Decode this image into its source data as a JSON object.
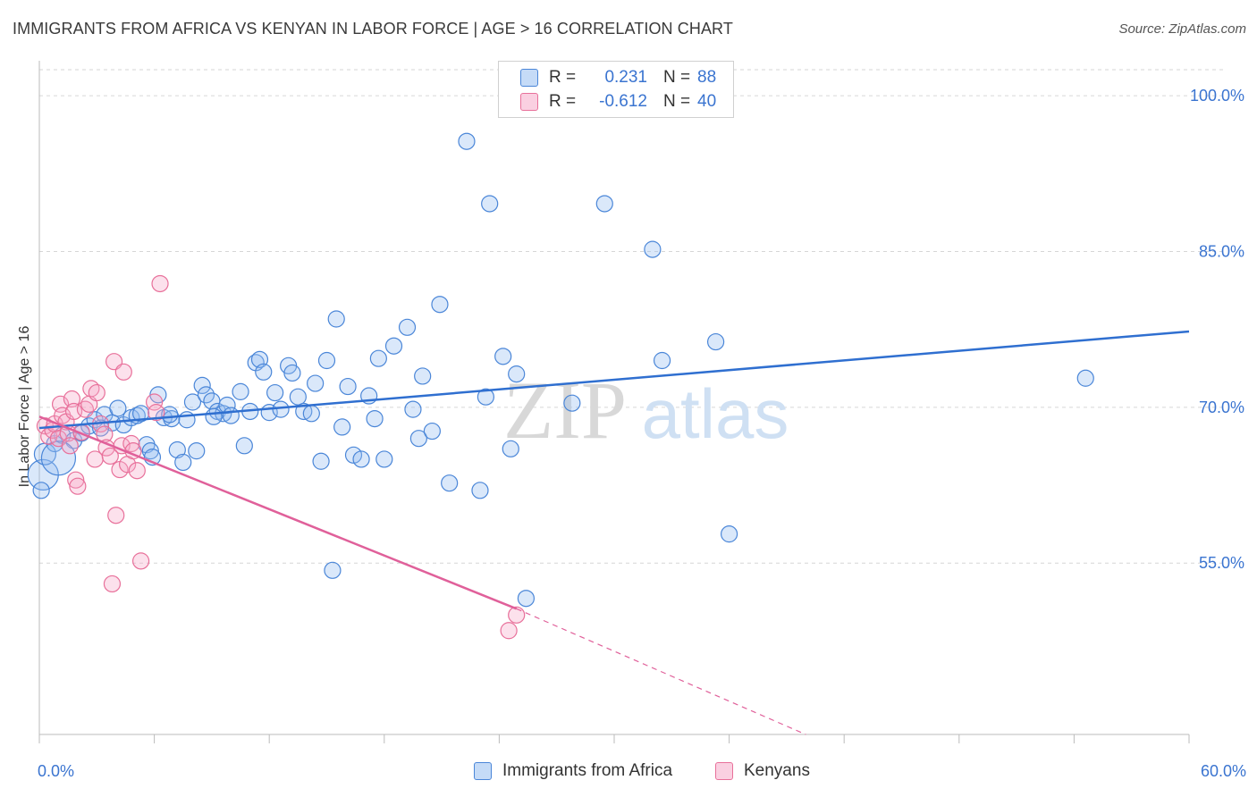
{
  "title": "IMMIGRANTS FROM AFRICA VS KENYAN IN LABOR FORCE | AGE > 16 CORRELATION CHART",
  "source": "Source: ZipAtlas.com",
  "watermark": {
    "zip": "ZIP",
    "atlas": "atlas"
  },
  "colors": {
    "blue": "#4a86d8",
    "blue_fill": "rgba(150,190,240,0.35)",
    "pink": "#e8709a",
    "pink_fill": "rgba(245,170,200,0.35)",
    "grid": "#d6d6d6",
    "tick_text": "#3a74d0"
  },
  "legend": {
    "rows": [
      {
        "r_label": "R =",
        "r_value": "0.231",
        "n_label": "N =",
        "n_value": "88"
      },
      {
        "r_label": "R =",
        "r_value": "-0.612",
        "n_label": "N =",
        "n_value": "40"
      }
    ],
    "bottom": [
      "Immigrants from Africa",
      "Kenyans"
    ]
  },
  "chart_data": {
    "type": "scatter",
    "title": "IMMIGRANTS FROM AFRICA VS KENYAN IN LABOR FORCE | AGE > 16 CORRELATION CHART",
    "xlabel": "",
    "ylabel": "In Labor Force | Age > 16",
    "xlim": [
      0,
      60
    ],
    "ylim": [
      38.5,
      102.5
    ],
    "x_tick_labels": [
      "0.0%",
      "60.0%"
    ],
    "y_ticks": [
      55,
      70,
      85,
      100
    ],
    "y_tick_labels": [
      "55.0%",
      "70.0%",
      "85.0%",
      "100.0%"
    ],
    "grid": true,
    "legend_position": "top-center",
    "series": [
      {
        "name": "Immigrants from Africa",
        "color": "blue",
        "points": [
          [
            0.2,
            63.5
          ],
          [
            0.3,
            65.5
          ],
          [
            0.8,
            66.5
          ],
          [
            1.2,
            67.3
          ],
          [
            1.8,
            66.8
          ],
          [
            2.2,
            67.5
          ],
          [
            2.6,
            68.2
          ],
          [
            2.9,
            68.8
          ],
          [
            3.4,
            69.3
          ],
          [
            3.8,
            68.5
          ],
          [
            4.1,
            69.9
          ],
          [
            4.4,
            68.3
          ],
          [
            4.8,
            69.0
          ],
          [
            5.1,
            69.2
          ],
          [
            5.3,
            69.4
          ],
          [
            5.6,
            66.4
          ],
          [
            5.8,
            65.8
          ],
          [
            5.9,
            65.2
          ],
          [
            6.2,
            71.2
          ],
          [
            6.5,
            69.0
          ],
          [
            6.9,
            68.9
          ],
          [
            7.2,
            65.9
          ],
          [
            7.5,
            64.7
          ],
          [
            7.7,
            68.8
          ],
          [
            8.0,
            70.5
          ],
          [
            8.2,
            65.8
          ],
          [
            8.5,
            72.1
          ],
          [
            8.7,
            71.2
          ],
          [
            9.0,
            70.6
          ],
          [
            9.3,
            69.6
          ],
          [
            9.6,
            69.4
          ],
          [
            9.8,
            70.2
          ],
          [
            10.0,
            69.2
          ],
          [
            10.5,
            71.5
          ],
          [
            10.7,
            66.3
          ],
          [
            11.0,
            69.6
          ],
          [
            11.3,
            74.3
          ],
          [
            11.5,
            74.6
          ],
          [
            11.7,
            73.4
          ],
          [
            12.0,
            69.5
          ],
          [
            12.3,
            71.4
          ],
          [
            12.6,
            69.8
          ],
          [
            13.0,
            74.0
          ],
          [
            13.2,
            73.3
          ],
          [
            13.5,
            71.0
          ],
          [
            13.8,
            69.6
          ],
          [
            14.2,
            69.4
          ],
          [
            14.4,
            72.3
          ],
          [
            14.7,
            64.8
          ],
          [
            15.0,
            74.5
          ],
          [
            15.3,
            54.3
          ],
          [
            15.5,
            78.5
          ],
          [
            15.8,
            68.1
          ],
          [
            16.1,
            72.0
          ],
          [
            16.4,
            65.4
          ],
          [
            16.8,
            65.0
          ],
          [
            17.2,
            71.1
          ],
          [
            17.5,
            68.9
          ],
          [
            17.7,
            74.7
          ],
          [
            18.0,
            65.0
          ],
          [
            18.5,
            75.9
          ],
          [
            19.2,
            77.7
          ],
          [
            19.5,
            69.8
          ],
          [
            19.8,
            67.0
          ],
          [
            20.0,
            73.0
          ],
          [
            20.5,
            67.7
          ],
          [
            20.9,
            79.9
          ],
          [
            21.4,
            62.7
          ],
          [
            22.3,
            95.6
          ],
          [
            23.0,
            62.0
          ],
          [
            23.3,
            71.0
          ],
          [
            23.5,
            89.6
          ],
          [
            24.2,
            74.9
          ],
          [
            24.6,
            66.0
          ],
          [
            24.9,
            73.2
          ],
          [
            25.4,
            51.6
          ],
          [
            27.8,
            70.4
          ],
          [
            29.5,
            89.6
          ],
          [
            32.0,
            85.2
          ],
          [
            32.5,
            74.5
          ],
          [
            35.3,
            76.3
          ],
          [
            36.0,
            57.8
          ],
          [
            54.6,
            72.8
          ],
          [
            0.1,
            62.0
          ],
          [
            1.0,
            65.1
          ],
          [
            3.2,
            68.0
          ],
          [
            6.8,
            69.3
          ],
          [
            9.1,
            69.1
          ]
        ],
        "trend": {
          "x1": 0,
          "y1": 68.0,
          "x2": 60,
          "y2": 77.3
        }
      },
      {
        "name": "Kenyans",
        "color": "pink",
        "points": [
          [
            0.3,
            68.2
          ],
          [
            0.5,
            67.2
          ],
          [
            0.7,
            67.8
          ],
          [
            0.8,
            68.4
          ],
          [
            1.0,
            67.0
          ],
          [
            1.1,
            70.3
          ],
          [
            1.2,
            69.2
          ],
          [
            1.4,
            68.6
          ],
          [
            1.5,
            67.5
          ],
          [
            1.6,
            66.3
          ],
          [
            1.7,
            70.8
          ],
          [
            1.8,
            69.6
          ],
          [
            1.9,
            63.0
          ],
          [
            2.0,
            62.4
          ],
          [
            2.2,
            67.6
          ],
          [
            2.4,
            69.8
          ],
          [
            2.6,
            70.3
          ],
          [
            2.7,
            71.8
          ],
          [
            2.9,
            65.0
          ],
          [
            3.0,
            71.4
          ],
          [
            3.2,
            68.4
          ],
          [
            3.4,
            67.4
          ],
          [
            3.5,
            66.1
          ],
          [
            3.7,
            65.3
          ],
          [
            3.8,
            53.0
          ],
          [
            3.9,
            74.4
          ],
          [
            4.0,
            59.6
          ],
          [
            4.2,
            64.0
          ],
          [
            4.3,
            66.3
          ],
          [
            4.4,
            73.4
          ],
          [
            4.6,
            64.5
          ],
          [
            4.8,
            66.5
          ],
          [
            4.9,
            65.8
          ],
          [
            5.1,
            63.9
          ],
          [
            5.3,
            55.2
          ],
          [
            6.0,
            70.5
          ],
          [
            6.1,
            69.5
          ],
          [
            6.3,
            81.9
          ],
          [
            24.5,
            48.5
          ],
          [
            24.9,
            50.0
          ]
        ],
        "trend": {
          "x1": 0,
          "y1": 69.1,
          "x2": 24.9,
          "y2": 50.6
        },
        "trend_dashed_extension": {
          "x1": 24.9,
          "y1": 50.6,
          "x2": 40.0,
          "y2": 38.5
        }
      }
    ]
  }
}
